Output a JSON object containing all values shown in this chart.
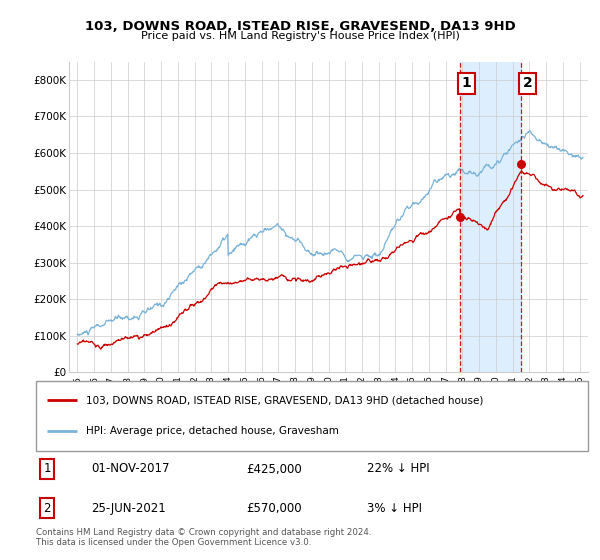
{
  "title": "103, DOWNS ROAD, ISTEAD RISE, GRAVESEND, DA13 9HD",
  "subtitle": "Price paid vs. HM Land Registry's House Price Index (HPI)",
  "ylim": [
    0,
    850000
  ],
  "yticks": [
    0,
    100000,
    200000,
    300000,
    400000,
    500000,
    600000,
    700000,
    800000
  ],
  "ytick_labels": [
    "£0",
    "£100K",
    "£200K",
    "£300K",
    "£400K",
    "£500K",
    "£600K",
    "£700K",
    "£800K"
  ],
  "xlim_left": 1994.5,
  "xlim_right": 2025.5,
  "sale1_date_num": 2017.833,
  "sale1_price": 425000,
  "sale1_label": "1",
  "sale2_date_num": 2021.486,
  "sale2_price": 570000,
  "sale2_label": "2",
  "red_line_color": "#cc0000",
  "blue_line_color": "#7ab3d9",
  "shade_color": "#ddeeff",
  "grid_color": "#cccccc",
  "dot_color": "#cc0000",
  "legend_red_label": "103, DOWNS ROAD, ISTEAD RISE, GRAVESEND, DA13 9HD (detached house)",
  "legend_blue_label": "HPI: Average price, detached house, Gravesham",
  "footnote": "Contains HM Land Registry data © Crown copyright and database right 2024.\nThis data is licensed under the Open Government Licence v3.0.",
  "background_color": "#ffffff"
}
